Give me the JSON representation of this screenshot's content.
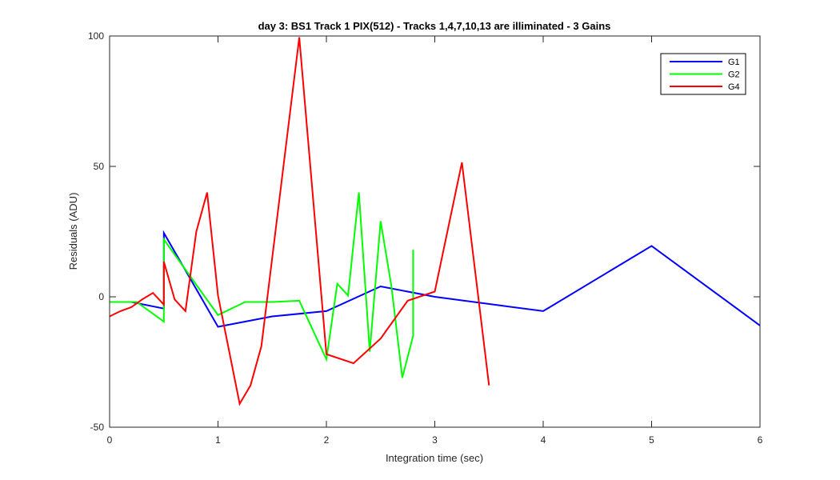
{
  "chart_data": {
    "type": "line",
    "title": "day 3: BS1  Track 1 PIX(512) - Tracks 1,4,7,10,13 are illiminated - 3 Gains",
    "xlabel": "Integration time (sec)",
    "ylabel": "Residuals (ADU)",
    "xlim": [
      0,
      6
    ],
    "ylim": [
      -50,
      100
    ],
    "xticks": [
      0,
      1,
      2,
      3,
      4,
      5,
      6
    ],
    "xtick_labels": [
      "0",
      "1",
      "2",
      "3",
      "4",
      "5",
      "6"
    ],
    "yticks": [
      -50,
      0,
      50,
      100
    ],
    "ytick_labels": [
      "-50",
      "0",
      "50",
      "100"
    ],
    "grid": false,
    "legend_position": "top-right",
    "series": [
      {
        "name": "G1",
        "color": "#0000ff",
        "x": [
          0,
          0.2,
          0.5,
          0.5,
          1.0,
          1.5,
          2.0,
          2.5,
          3.0,
          4.0,
          5.0,
          6.0
        ],
        "y": [
          -2,
          -2,
          -4.5,
          24.5,
          -11.5,
          -7.5,
          -5.5,
          4,
          0,
          -5.5,
          19.5,
          -11
        ]
      },
      {
        "name": "G2",
        "color": "#00ff00",
        "x": [
          0,
          0.25,
          0.5,
          0.5,
          1.0,
          1.25,
          1.5,
          1.75,
          2.0,
          2.1,
          2.2,
          2.3,
          2.4,
          2.5,
          2.6,
          2.7,
          2.8,
          2.8
        ],
        "y": [
          -2,
          -2,
          -9.5,
          22,
          -7,
          -2,
          -2,
          -1.5,
          -24,
          5,
          0.5,
          40,
          -21,
          29,
          4,
          -31,
          -15,
          18
        ]
      },
      {
        "name": "G4",
        "color": "#ff0000",
        "x": [
          0,
          0.1,
          0.2,
          0.3,
          0.4,
          0.5,
          0.5,
          0.6,
          0.7,
          0.8,
          0.9,
          1.0,
          1.2,
          1.3,
          1.4,
          1.75,
          2.0,
          2.25,
          2.5,
          2.75,
          3.0,
          3.25,
          3.5
        ],
        "y": [
          -7.5,
          -5.5,
          -4,
          -1,
          1.5,
          -3,
          13.5,
          -1,
          -5.5,
          25,
          40,
          0.5,
          -41,
          -34,
          -19,
          99.5,
          -22,
          -25.5,
          -16,
          -1.5,
          2,
          51.5,
          -34
        ]
      }
    ]
  }
}
